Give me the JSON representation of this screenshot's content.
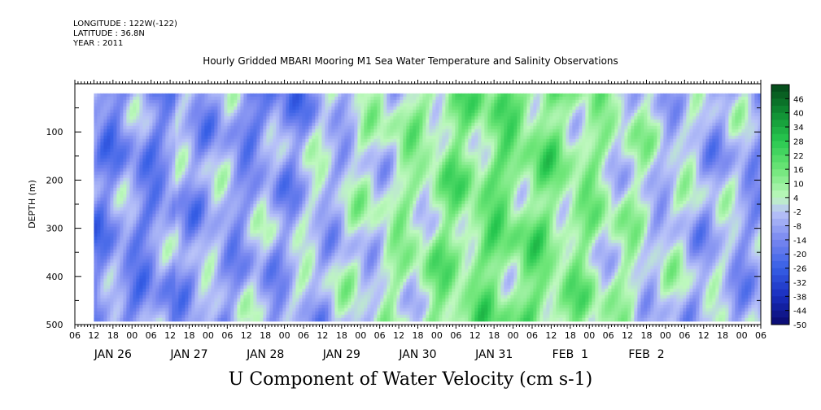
{
  "header": {
    "longitude": "LONGITUDE : 122W(-122)",
    "latitude": "LATITUDE : 36.8N",
    "year": "YEAR : 2011"
  },
  "chart_data": {
    "type": "heatmap",
    "title": "Hourly Gridded MBARI Mooring M1 Sea Water Temperature and Salinity Observations",
    "caption": "U Component of Water Velocity (cm s-1)",
    "ylabel": "DEPTH (m)",
    "ylim": [
      500,
      0
    ],
    "y_ticks": [
      100,
      200,
      300,
      400,
      500
    ],
    "x_ticks_hours": [
      "06",
      "12",
      "18",
      "00",
      "06",
      "12",
      "18",
      "00",
      "06",
      "12",
      "18",
      "00",
      "06",
      "12",
      "18",
      "00",
      "06",
      "12",
      "18",
      "00",
      "06",
      "12",
      "18",
      "00",
      "06",
      "12",
      "18",
      "00",
      "06",
      "12",
      "18",
      "00",
      "06",
      "12",
      "18",
      "00",
      "06"
    ],
    "x_day_labels": [
      {
        "label": "JAN 26",
        "hour_index": 2
      },
      {
        "label": "JAN 27",
        "hour_index": 6
      },
      {
        "label": "JAN 28",
        "hour_index": 10
      },
      {
        "label": "JAN 29",
        "hour_index": 14
      },
      {
        "label": "JAN 30",
        "hour_index": 18
      },
      {
        "label": "JAN 31",
        "hour_index": 22
      },
      {
        "label": "FEB  1",
        "hour_index": 26
      },
      {
        "label": "FEB  2",
        "hour_index": 30
      }
    ],
    "data_depth_range": [
      20,
      490
    ],
    "data_start_hour_index": 1,
    "colorbar": {
      "labels": [
        46,
        40,
        34,
        28,
        22,
        16,
        10,
        4,
        -2,
        -8,
        -14,
        -20,
        -26,
        -32,
        -38,
        -44,
        -50
      ],
      "range": [
        -50,
        52
      ],
      "step": 3
    },
    "colors": {
      "strong_negative": "#0a0a80",
      "negative": "#3a5ee0",
      "weak_negative": "#9aa8f0",
      "weak_positive": "#a8f0a8",
      "positive": "#40d060",
      "strong_positive": "#0a6a2a"
    },
    "field_summary": {
      "Jan 26 - Jan 28": "mostly weak negative (-20 to 0), strongest near surface Jan 28",
      "Jan 29 - Jan 31": "mostly positive (4 to 28), strongest mid-depth",
      "Feb 1 - Feb 2": "mixed weak values (-14 to 16)"
    }
  }
}
